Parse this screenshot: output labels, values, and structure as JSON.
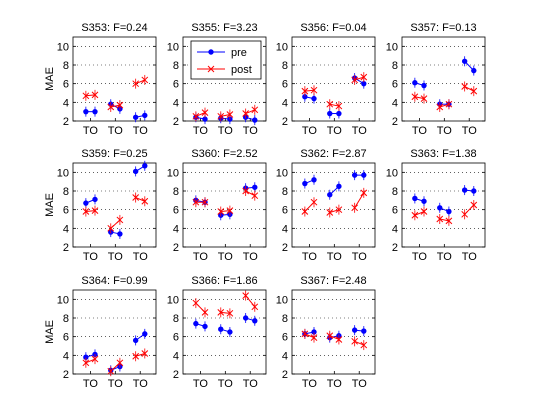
{
  "chart_data": [
    {
      "type": "line",
      "title": "S353: F=0.24",
      "xlabel": "",
      "ylabel": "MAE",
      "categories": [
        "TO",
        "TO",
        "TO"
      ],
      "ylim": [
        2,
        11
      ],
      "yticks": [
        2,
        4,
        6,
        8,
        10
      ],
      "grid": "dotted-y",
      "series": [
        {
          "name": "pre",
          "color": "#0000ff",
          "points": [
            [
              3.0,
              3.0
            ],
            [
              3.8,
              3.3
            ],
            [
              2.4,
              2.6
            ]
          ]
        },
        {
          "name": "post",
          "color": "#ff0000",
          "points": [
            [
              4.7,
              4.8
            ],
            [
              3.5,
              3.7
            ],
            [
              6.0,
              6.4
            ]
          ]
        }
      ]
    },
    {
      "type": "line",
      "title": "S355: F=3.23",
      "xlabel": "",
      "ylabel": "",
      "categories": [
        "TO",
        "TO",
        "TO"
      ],
      "ylim": [
        2,
        11
      ],
      "yticks": [
        2,
        4,
        6,
        8,
        10
      ],
      "grid": "dotted-y",
      "legend": {
        "position": "top-left",
        "entries": [
          "pre",
          "post"
        ]
      },
      "series": [
        {
          "name": "pre",
          "color": "#0000ff",
          "points": [
            [
              2.4,
              2.2
            ],
            [
              2.3,
              2.2
            ],
            [
              2.4,
              2.1
            ]
          ]
        },
        {
          "name": "post",
          "color": "#ff0000",
          "points": [
            [
              2.5,
              2.9
            ],
            [
              2.5,
              2.7
            ],
            [
              2.8,
              3.2
            ]
          ]
        }
      ]
    },
    {
      "type": "line",
      "title": "S356: F=0.04",
      "xlabel": "",
      "ylabel": "",
      "categories": [
        "TO",
        "TO",
        "TO"
      ],
      "ylim": [
        2,
        11
      ],
      "yticks": [
        2,
        4,
        6,
        8,
        10
      ],
      "grid": "dotted-y",
      "series": [
        {
          "name": "pre",
          "color": "#0000ff",
          "points": [
            [
              4.6,
              4.4
            ],
            [
              2.8,
              2.8
            ],
            [
              6.6,
              6.0
            ]
          ]
        },
        {
          "name": "post",
          "color": "#ff0000",
          "points": [
            [
              5.2,
              5.3
            ],
            [
              3.8,
              3.6
            ],
            [
              6.4,
              6.7
            ]
          ]
        }
      ]
    },
    {
      "type": "line",
      "title": "S357: F=0.13",
      "xlabel": "",
      "ylabel": "",
      "categories": [
        "TO",
        "TO",
        "TO"
      ],
      "ylim": [
        2,
        11
      ],
      "yticks": [
        2,
        4,
        6,
        8,
        10
      ],
      "grid": "dotted-y",
      "series": [
        {
          "name": "pre",
          "color": "#0000ff",
          "points": [
            [
              6.1,
              5.8
            ],
            [
              3.8,
              3.8
            ],
            [
              8.4,
              7.4
            ]
          ]
        },
        {
          "name": "post",
          "color": "#ff0000",
          "points": [
            [
              4.6,
              4.4
            ],
            [
              3.5,
              3.8
            ],
            [
              5.7,
              5.2
            ]
          ]
        }
      ]
    },
    {
      "type": "line",
      "title": "S359: F=0.25",
      "xlabel": "",
      "ylabel": "MAE",
      "categories": [
        "TO",
        "TO",
        "TO"
      ],
      "ylim": [
        2,
        11
      ],
      "yticks": [
        2,
        4,
        6,
        8,
        10
      ],
      "grid": "dotted-y",
      "series": [
        {
          "name": "pre",
          "color": "#0000ff",
          "points": [
            [
              6.7,
              7.1
            ],
            [
              3.6,
              3.4
            ],
            [
              10.1,
              10.7
            ]
          ]
        },
        {
          "name": "post",
          "color": "#ff0000",
          "points": [
            [
              5.8,
              5.9
            ],
            [
              4.0,
              4.9
            ],
            [
              7.3,
              6.9
            ]
          ]
        }
      ]
    },
    {
      "type": "line",
      "title": "S360: F=2.52",
      "xlabel": "",
      "ylabel": "",
      "categories": [
        "TO",
        "TO",
        "TO"
      ],
      "ylim": [
        2,
        11
      ],
      "yticks": [
        2,
        4,
        6,
        8,
        10
      ],
      "grid": "dotted-y",
      "series": [
        {
          "name": "pre",
          "color": "#0000ff",
          "points": [
            [
              7.0,
              6.8
            ],
            [
              5.4,
              5.5
            ],
            [
              8.3,
              8.4
            ]
          ]
        },
        {
          "name": "post",
          "color": "#ff0000",
          "points": [
            [
              6.8,
              6.8
            ],
            [
              5.8,
              5.9
            ],
            [
              8.0,
              7.5
            ]
          ]
        }
      ]
    },
    {
      "type": "line",
      "title": "S362: F=2.87",
      "xlabel": "",
      "ylabel": "",
      "categories": [
        "TO",
        "TO",
        "TO"
      ],
      "ylim": [
        2,
        11
      ],
      "yticks": [
        2,
        4,
        6,
        8,
        10
      ],
      "grid": "dotted-y",
      "series": [
        {
          "name": "pre",
          "color": "#0000ff",
          "points": [
            [
              8.8,
              9.2
            ],
            [
              7.6,
              8.5
            ],
            [
              9.7,
              9.7
            ]
          ]
        },
        {
          "name": "post",
          "color": "#ff0000",
          "points": [
            [
              5.8,
              6.8
            ],
            [
              5.7,
              6.0
            ],
            [
              6.2,
              7.8
            ]
          ]
        }
      ]
    },
    {
      "type": "line",
      "title": "S363: F=1.38",
      "xlabel": "",
      "ylabel": "",
      "categories": [
        "TO",
        "TO",
        "TO"
      ],
      "ylim": [
        2,
        11
      ],
      "yticks": [
        2,
        4,
        6,
        8,
        10
      ],
      "grid": "dotted-y",
      "series": [
        {
          "name": "pre",
          "color": "#0000ff",
          "points": [
            [
              7.2,
              6.9
            ],
            [
              6.2,
              5.8
            ],
            [
              8.1,
              8.0
            ]
          ]
        },
        {
          "name": "post",
          "color": "#ff0000",
          "points": [
            [
              5.4,
              5.8
            ],
            [
              5.0,
              4.8
            ],
            [
              5.5,
              6.5
            ]
          ]
        }
      ]
    },
    {
      "type": "line",
      "title": "S364: F=0.99",
      "xlabel": "",
      "ylabel": "MAE",
      "categories": [
        "TO",
        "TO",
        "TO"
      ],
      "ylim": [
        2,
        11
      ],
      "yticks": [
        2,
        4,
        6,
        8,
        10
      ],
      "grid": "dotted-y",
      "series": [
        {
          "name": "pre",
          "color": "#0000ff",
          "points": [
            [
              3.8,
              4.1
            ],
            [
              2.4,
              2.8
            ],
            [
              5.6,
              6.3
            ]
          ]
        },
        {
          "name": "post",
          "color": "#ff0000",
          "points": [
            [
              3.2,
              3.6
            ],
            [
              2.3,
              3.2
            ],
            [
              3.9,
              4.2
            ]
          ]
        }
      ]
    },
    {
      "type": "line",
      "title": "S366: F=1.86",
      "xlabel": "",
      "ylabel": "",
      "categories": [
        "TO",
        "TO",
        "TO"
      ],
      "ylim": [
        2,
        11
      ],
      "yticks": [
        2,
        4,
        6,
        8,
        10
      ],
      "grid": "dotted-y",
      "series": [
        {
          "name": "pre",
          "color": "#0000ff",
          "points": [
            [
              7.4,
              7.1
            ],
            [
              6.8,
              6.5
            ],
            [
              8.0,
              7.7
            ]
          ]
        },
        {
          "name": "post",
          "color": "#ff0000",
          "points": [
            [
              9.6,
              8.6
            ],
            [
              8.6,
              8.5
            ],
            [
              10.4,
              9.2
            ]
          ]
        }
      ]
    },
    {
      "type": "line",
      "title": "S367: F=2.48",
      "xlabel": "",
      "ylabel": "",
      "categories": [
        "TO",
        "TO",
        "TO"
      ],
      "ylim": [
        2,
        11
      ],
      "yticks": [
        2,
        4,
        6,
        8,
        10
      ],
      "grid": "dotted-y",
      "series": [
        {
          "name": "pre",
          "color": "#0000ff",
          "points": [
            [
              6.3,
              6.5
            ],
            [
              5.9,
              6.1
            ],
            [
              6.7,
              6.6
            ]
          ]
        },
        {
          "name": "post",
          "color": "#ff0000",
          "points": [
            [
              6.3,
              5.9
            ],
            [
              6.1,
              5.7
            ],
            [
              5.5,
              5.1
            ]
          ]
        }
      ]
    }
  ]
}
